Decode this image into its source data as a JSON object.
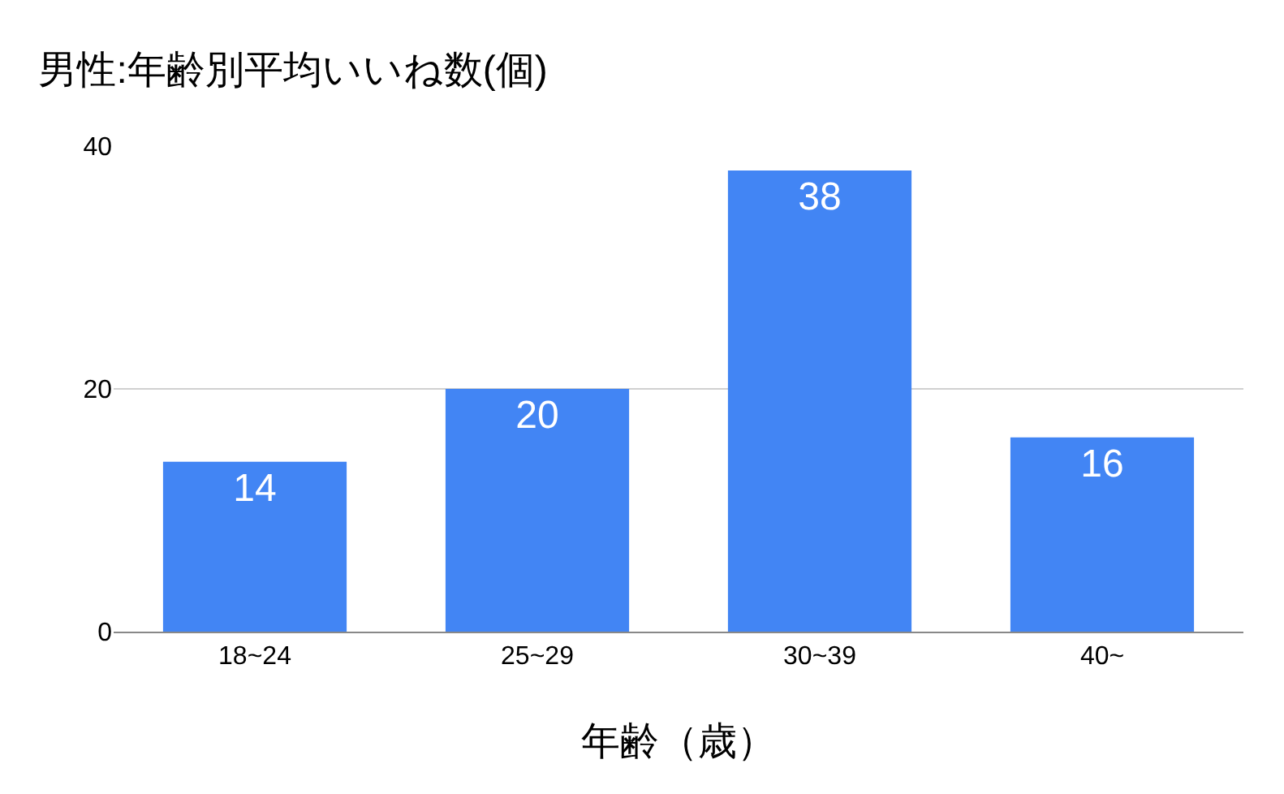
{
  "chart_data": {
    "type": "bar",
    "title": "男性:年齢別平均いいね数(個)",
    "xlabel": "年齢（歳）",
    "categories": [
      "18~24",
      "25~29",
      "30~39",
      "40~"
    ],
    "values": [
      14,
      20,
      38,
      16
    ],
    "color": "#4285f4",
    "ylim": [
      0,
      40
    ],
    "yticks": [
      0,
      20,
      40
    ],
    "grid": "y",
    "data_labels": true
  }
}
